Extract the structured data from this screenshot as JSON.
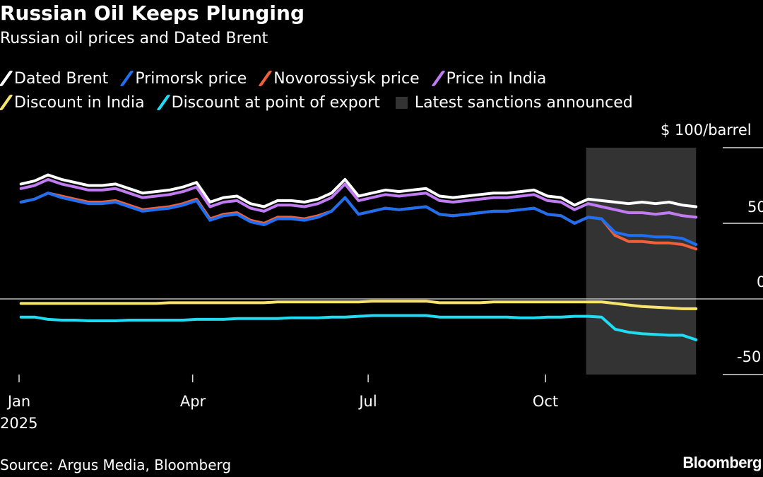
{
  "chart_data": {
    "type": "line",
    "title": "Russian Oil Keeps Plunging",
    "subtitle": "Russian oil prices and Dated Brent",
    "ylabel": "$ 100/barrel",
    "ylim": [
      -50,
      100
    ],
    "yticks": [
      "$ 100/barrel",
      "50",
      "0",
      "-50"
    ],
    "ytick_values": [
      100,
      50,
      0,
      -50
    ],
    "xticks": [
      "Jan",
      "Apr",
      "Jul",
      "Oct"
    ],
    "xtick_dates": [
      "2025-01-01",
      "2025-04-01",
      "2025-07-01",
      "2025-10-01"
    ],
    "xtick_year": "2025",
    "grid": false,
    "legend_position": "top",
    "shaded_region": {
      "name": "Latest sanctions announced",
      "start": "2025-10-22",
      "end": "2025-12-18",
      "color": "#333333"
    },
    "x": [
      "2025-01-02",
      "2025-01-09",
      "2025-01-16",
      "2025-01-23",
      "2025-01-30",
      "2025-02-06",
      "2025-02-13",
      "2025-02-20",
      "2025-02-27",
      "2025-03-06",
      "2025-03-13",
      "2025-03-20",
      "2025-03-27",
      "2025-04-03",
      "2025-04-10",
      "2025-04-17",
      "2025-04-24",
      "2025-05-01",
      "2025-05-08",
      "2025-05-15",
      "2025-05-22",
      "2025-05-29",
      "2025-06-05",
      "2025-06-12",
      "2025-06-19",
      "2025-06-26",
      "2025-07-03",
      "2025-07-10",
      "2025-07-17",
      "2025-07-24",
      "2025-07-31",
      "2025-08-07",
      "2025-08-14",
      "2025-08-21",
      "2025-08-28",
      "2025-09-04",
      "2025-09-11",
      "2025-09-18",
      "2025-09-25",
      "2025-10-02",
      "2025-10-09",
      "2025-10-16",
      "2025-10-23",
      "2025-10-30",
      "2025-11-06",
      "2025-11-13",
      "2025-11-20",
      "2025-11-27",
      "2025-12-04",
      "2025-12-11",
      "2025-12-18"
    ],
    "series": [
      {
        "name": "Dated Brent",
        "color": "#ffffff",
        "values": [
          76,
          78,
          82,
          79,
          77,
          75,
          75,
          76,
          73,
          70,
          71,
          72,
          74,
          77,
          64,
          67,
          68,
          63,
          61,
          65,
          65,
          64,
          66,
          70,
          79,
          68,
          70,
          72,
          71,
          72,
          73,
          68,
          67,
          68,
          69,
          70,
          70,
          71,
          72,
          68,
          67,
          62,
          66,
          65,
          64,
          63,
          64,
          63,
          64,
          62,
          61
        ]
      },
      {
        "name": "Price in India",
        "color": "#c17bf2",
        "values": [
          73,
          75,
          79,
          76,
          74,
          72,
          72,
          73,
          70,
          67,
          68,
          69,
          71,
          74,
          61,
          64,
          65,
          60,
          58,
          62,
          62,
          61,
          63,
          67,
          76,
          65,
          67,
          69,
          68,
          69,
          70,
          65,
          64,
          65,
          66,
          67,
          67,
          68,
          69,
          65,
          64,
          59,
          63,
          61,
          59,
          57,
          57,
          56,
          57,
          55,
          54
        ]
      },
      {
        "name": "Novorossiysk price",
        "color": "#f0603a",
        "values": [
          64,
          66,
          70,
          68,
          66,
          64,
          64,
          65,
          62,
          59,
          60,
          61,
          63,
          66,
          53,
          56,
          57,
          52,
          50,
          54,
          54,
          53,
          55,
          58,
          67,
          56,
          58,
          60,
          59,
          60,
          61,
          56,
          55,
          56,
          57,
          58,
          58,
          59,
          60,
          56,
          55,
          50,
          54,
          53,
          42,
          38,
          38,
          37,
          37,
          36,
          33
        ]
      },
      {
        "name": "Primorsk price",
        "color": "#1f6ff0",
        "values": [
          64,
          66,
          70,
          67,
          65,
          63,
          63,
          64,
          61,
          58,
          59,
          60,
          62,
          65,
          52,
          55,
          56,
          51,
          49,
          53,
          53,
          52,
          54,
          58,
          67,
          56,
          58,
          60,
          59,
          60,
          61,
          56,
          55,
          56,
          57,
          58,
          58,
          59,
          60,
          56,
          55,
          50,
          54,
          53,
          44,
          42,
          42,
          41,
          41,
          40,
          36
        ]
      },
      {
        "name": "Discount in India",
        "color": "#f7e46a",
        "values": [
          -3,
          -3,
          -3,
          -3,
          -3,
          -3,
          -3,
          -3,
          -3,
          -3,
          -3,
          -2.5,
          -2.5,
          -2.5,
          -2.5,
          -2.5,
          -2.5,
          -2.5,
          -2.5,
          -2,
          -2,
          -2,
          -2,
          -2,
          -2,
          -2,
          -1.5,
          -1.5,
          -1.5,
          -1.5,
          -1.5,
          -2.5,
          -2.5,
          -2.5,
          -2.5,
          -2,
          -2,
          -2,
          -2,
          -2,
          -2,
          -2,
          -2,
          -2,
          -3,
          -4,
          -5,
          -5.5,
          -6,
          -6.5,
          -6.5
        ]
      },
      {
        "name": "Discount at point of export",
        "color": "#1fdcf2",
        "values": [
          -12,
          -12,
          -13.5,
          -14,
          -14,
          -14.5,
          -14.5,
          -14.5,
          -14,
          -14,
          -14,
          -14,
          -14,
          -13.5,
          -13.5,
          -13.5,
          -13,
          -13,
          -13,
          -13,
          -12.5,
          -12.5,
          -12.5,
          -12,
          -12,
          -11.5,
          -11,
          -11,
          -11,
          -11,
          -11,
          -12,
          -12,
          -12,
          -12,
          -12,
          -12,
          -12.5,
          -12.5,
          -12,
          -12,
          -11.5,
          -11.5,
          -12,
          -20,
          -22,
          -23,
          -23.5,
          -24,
          -24,
          -27
        ]
      }
    ]
  },
  "legend": {
    "row1": [
      {
        "label": "Dated Brent",
        "color": "#ffffff"
      },
      {
        "label": "Primorsk price",
        "color": "#1f6ff0"
      },
      {
        "label": "Novorossiysk price",
        "color": "#f0603a"
      },
      {
        "label": "Price in India",
        "color": "#c17bf2"
      }
    ],
    "row2": [
      {
        "label": "Discount in India",
        "color": "#f7e46a"
      },
      {
        "label": "Discount at point of export",
        "color": "#1fdcf2"
      }
    ],
    "shaded": {
      "label": "Latest sanctions announced",
      "color": "#333333"
    }
  },
  "footer": {
    "source": "Source: Argus Media, Bloomberg",
    "logo": "Bloomberg"
  }
}
